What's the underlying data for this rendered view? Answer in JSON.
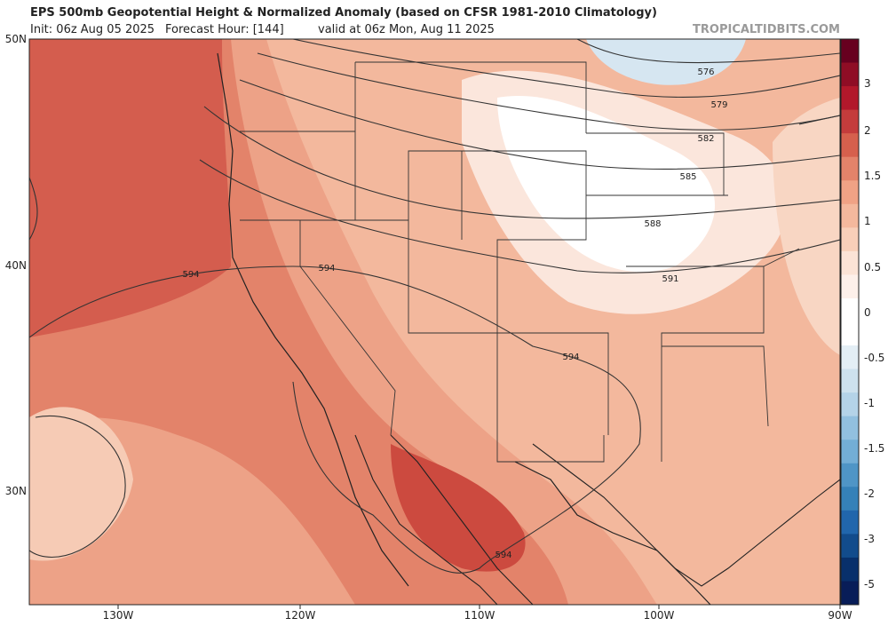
{
  "header": {
    "title": "EPS 500mb Geopotential Height & Normalized Anomaly (based on CFSR 1981-2010 Climatology)",
    "init": "Init: 06z Aug 05 2025",
    "forecast_hour": "Forecast Hour: [144]",
    "valid": "valid at 06z Mon, Aug 11 2025",
    "site": "TROPICALTIDBITS.COM"
  },
  "map": {
    "lat_labels": [
      "50N",
      "40N",
      "30N"
    ],
    "lon_labels": [
      "130W",
      "120W",
      "110W",
      "100W",
      "90W"
    ],
    "contour_labels": [
      "576",
      "579",
      "582",
      "585",
      "588",
      "591",
      "594",
      "594",
      "594",
      "594"
    ]
  },
  "colorbar": {
    "labels": [
      "3",
      "2",
      "1.5",
      "1",
      "0.5",
      "0",
      "-0.5",
      "-1",
      "-1.5",
      "-2",
      "-3",
      "-5"
    ]
  }
}
